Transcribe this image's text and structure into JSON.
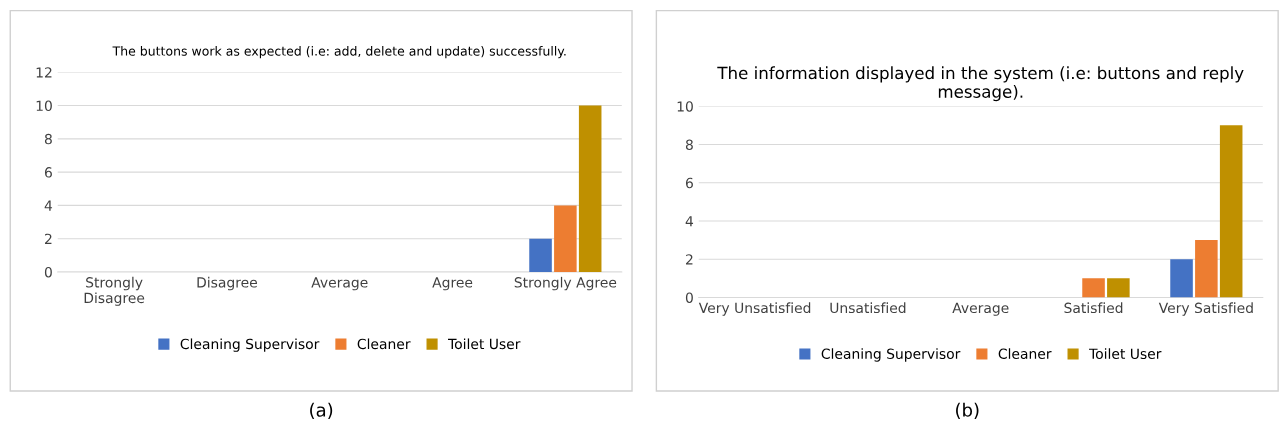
{
  "chart_data": [
    {
      "type": "bar",
      "title": "The buttons work as expected (i.e: add, delete and update) successfully.",
      "categories": [
        "Strongly\nDisagree",
        "Disagree",
        "Average",
        "Agree",
        "Strongly Agree"
      ],
      "series": [
        {
          "name": "Cleaning Supervisor",
          "color": "#4472c4",
          "values": [
            0,
            0,
            0,
            0,
            2
          ]
        },
        {
          "name": "Cleaner",
          "color": "#ed7d31",
          "values": [
            0,
            0,
            0,
            0,
            4
          ]
        },
        {
          "name": "Toilet User",
          "color": "#bf9000",
          "values": [
            0,
            0,
            0,
            0,
            10
          ]
        }
      ],
      "ylim": [
        0,
        12
      ],
      "yticks": [
        0,
        2,
        4,
        6,
        8,
        10,
        12
      ],
      "grid": "y",
      "legend": "bottom",
      "annotations": [
        "(a)"
      ]
    },
    {
      "type": "bar",
      "title": "The information displayed in the system (i.e: buttons and reply message).",
      "categories": [
        "Very Unsatisfied",
        "Unsatisfied",
        "Average",
        "Satisfied",
        "Very Satisfied"
      ],
      "series": [
        {
          "name": "Cleaning Supervisor",
          "color": "#4472c4",
          "values": [
            0,
            0,
            0,
            0,
            2
          ]
        },
        {
          "name": "Cleaner",
          "color": "#ed7d31",
          "values": [
            0,
            0,
            0,
            1,
            3
          ]
        },
        {
          "name": "Toilet User",
          "color": "#bf9000",
          "values": [
            0,
            0,
            0,
            1,
            9
          ]
        }
      ],
      "ylim": [
        0,
        10
      ],
      "yticks": [
        0,
        2,
        4,
        6,
        8,
        10
      ],
      "grid": "y",
      "legend": "bottom",
      "annotations": [
        "(b)"
      ]
    }
  ]
}
